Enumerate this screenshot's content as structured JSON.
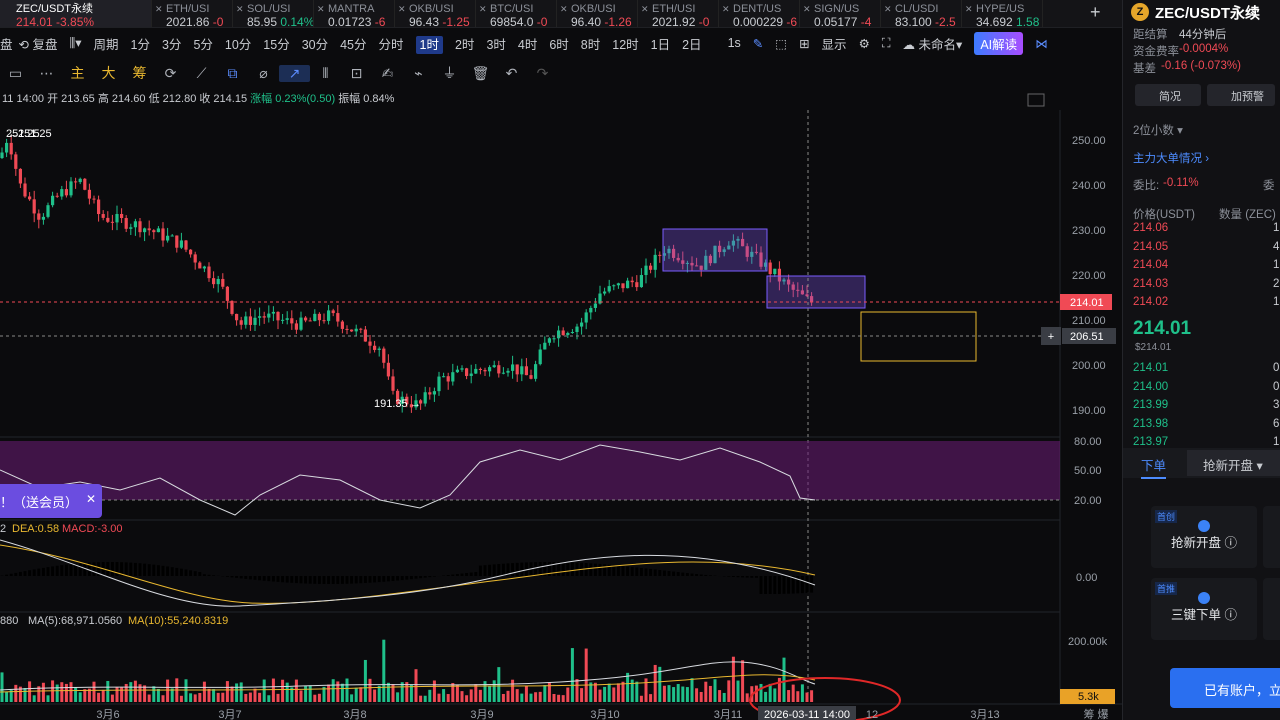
{
  "tabs": [
    {
      "name": "ZEC/USDT永续",
      "price": "214.01",
      "change": "-3.85%",
      "dir": "down",
      "active": true
    },
    {
      "name": "ETH/USI",
      "price": "2021.86",
      "change": "-0",
      "dir": "down"
    },
    {
      "name": "SOL/USI",
      "price": "85.95",
      "change": "0.14%",
      "dir": "up"
    },
    {
      "name": "MANTRA",
      "price": "0.01723",
      "change": "-6",
      "dir": "down"
    },
    {
      "name": "OKB/USI",
      "price": "96.43",
      "change": "-1.25",
      "dir": "down"
    },
    {
      "name": "BTC/USI",
      "price": "69854.0",
      "change": "-0",
      "dir": "down"
    },
    {
      "name": "OKB/USI",
      "price": "96.40",
      "change": "-1.26",
      "dir": "down"
    },
    {
      "name": "ETH/USI",
      "price": "2021.92",
      "change": "-0",
      "dir": "down"
    },
    {
      "name": "DENT/US",
      "price": "0.000229",
      "change": "-6",
      "dir": "down"
    },
    {
      "name": "SIGN/US",
      "price": "0.05177",
      "change": "-4",
      "dir": "down"
    },
    {
      "name": "CL/USDI",
      "price": "83.100",
      "change": "-2.5",
      "dir": "down"
    },
    {
      "name": "HYPE/US",
      "price": "34.692",
      "change": "1.58",
      "dir": "up"
    }
  ],
  "toolbar": {
    "replay": "复盘",
    "period": "周期",
    "intervals": [
      "1分",
      "3分",
      "5分",
      "10分",
      "15分",
      "30分",
      "45分",
      "分时",
      "1时",
      "2时",
      "3时",
      "4时",
      "6时",
      "8时",
      "12时",
      "1日",
      "2日"
    ],
    "active_interval": "1时",
    "seconds": "1s",
    "display": "显示",
    "unnamed": "未命名",
    "ai": "AI解读"
  },
  "drawing_tools": {
    "main": "主",
    "big": "大",
    "chips": "筹"
  },
  "ohlc": {
    "time": "11 14:00",
    "open": "开 213.65",
    "high": "高 214.60",
    "low": "低 212.80",
    "close": "收 214.15",
    "change": "涨幅 0.23%(0.50)",
    "amplitude": "振幅 0.84%"
  },
  "chart": {
    "price_ticks": [
      "250.00",
      "240.00",
      "230.00",
      "220.00",
      "210.00",
      "200.00",
      "190.00"
    ],
    "high_label": "251.25",
    "low_label": "191.35",
    "last_price": "214.01",
    "crosshair_price": "206.51",
    "rsi_ticks": [
      "80.00",
      "50.00",
      "20.00"
    ],
    "macd_labels": {
      "dif": "2",
      "dea": "DEA:0.58",
      "macd": "MACD:-3.00"
    },
    "macd_tick": "0.00",
    "vol_labels": {
      "base": "880",
      "ma5": "MA(5):68,971.0560",
      "ma10": "MA(10):55,240.8319"
    },
    "vol_tick": "200.00k",
    "vol_last": "5.3k",
    "dates": [
      "3月6",
      "3月7",
      "3月8",
      "3月9",
      "3月10",
      "3月11",
      "12",
      "3月13"
    ],
    "crosshair_time": "2026-03-11 14:00",
    "corner": "筹 爆"
  },
  "promo": {
    "text": "！（送会员）",
    "close": "✕"
  },
  "right_panel": {
    "title": "ZEC/USDT永续",
    "settle_label": "距结算",
    "settle_value": "44分钟后",
    "funding_label": "资金费率",
    "funding_value": "-0.0004%",
    "basis_label": "基差",
    "basis_value": "-0.16 (-0.073%)",
    "brief": "简况",
    "alert": "加预警",
    "decimals": "2位小数",
    "mainflow": "主力大单情况",
    "ratio_label": "委比:",
    "ratio_value": "-0.11%",
    "ratio2": "委",
    "col_price": "价格(USDT)",
    "col_qty": "数量 (ZEC)",
    "asks": [
      {
        "p": "214.06",
        "q": "16"
      },
      {
        "p": "214.05",
        "q": "4"
      },
      {
        "p": "214.04",
        "q": "1"
      },
      {
        "p": "214.03",
        "q": "2"
      },
      {
        "p": "214.02",
        "q": "13"
      }
    ],
    "mid": "214.01",
    "mid_usd": "$214.01",
    "bids": [
      {
        "p": "214.01",
        "q": "0"
      },
      {
        "p": "214.00",
        "q": "0"
      },
      {
        "p": "213.99",
        "q": "3"
      },
      {
        "p": "213.98",
        "q": "6"
      },
      {
        "p": "213.97",
        "q": "15"
      }
    ],
    "tab_order": "下单",
    "tab_grab": "抢新开盘",
    "card1_tag": "首创",
    "card1": "抢新开盘",
    "card2_tag": "首推",
    "card2": "三键下单",
    "account": "已有账户，立"
  }
}
